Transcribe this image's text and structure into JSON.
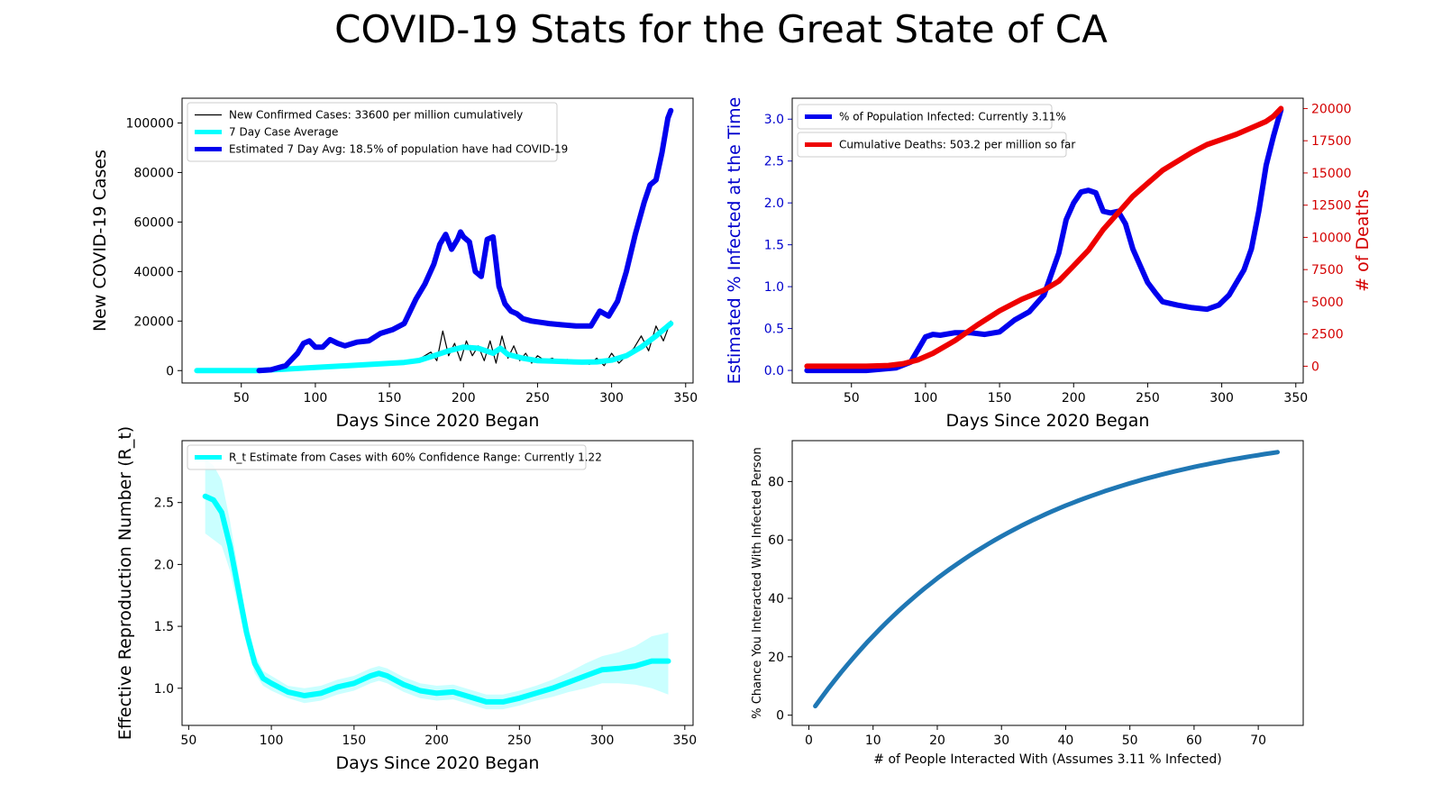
{
  "figure": {
    "title": "COVID-19 Stats for the Great State of CA"
  },
  "colors": {
    "black": "#000000",
    "cyan": "#00ffff",
    "blue": "#0000ee",
    "red": "#ee0000",
    "mpl_blue": "#1f77b4",
    "axis_blue": "#0000cd",
    "axis_red": "#d40000",
    "band": "#b3ffff"
  },
  "chart_data": [
    {
      "id": "cases",
      "type": "line",
      "xlabel": "Days Since 2020 Began",
      "ylabel": "New COVID-19 Cases",
      "xlim": [
        10,
        355
      ],
      "ylim": [
        -5000,
        110000
      ],
      "xticks": [
        50,
        100,
        150,
        200,
        250,
        300,
        350
      ],
      "yticks": [
        0,
        20000,
        40000,
        60000,
        80000,
        100000
      ],
      "legend_position": "upper-left",
      "grid": false,
      "series": [
        {
          "name": "New Confirmed Cases: 33600 per million cumulatively",
          "color": "#000000",
          "width": 1.2,
          "x": [
            20,
            40,
            60,
            80,
            100,
            120,
            140,
            160,
            170,
            178,
            182,
            186,
            190,
            194,
            198,
            202,
            206,
            210,
            214,
            218,
            222,
            226,
            230,
            234,
            238,
            242,
            246,
            250,
            255,
            260,
            265,
            270,
            275,
            280,
            285,
            290,
            295,
            300,
            305,
            310,
            315,
            320,
            325,
            330,
            335,
            340
          ],
          "y": [
            0,
            0,
            0,
            600,
            1500,
            2200,
            2800,
            3400,
            4600,
            7500,
            4000,
            16000,
            6000,
            11000,
            4000,
            12000,
            6000,
            10000,
            4000,
            12000,
            3000,
            14000,
            5000,
            10000,
            4000,
            7000,
            3000,
            6000,
            4000,
            5000,
            3000,
            4500,
            3000,
            4000,
            2500,
            5000,
            2000,
            7000,
            3000,
            6000,
            9000,
            14000,
            8000,
            18000,
            12000,
            20000
          ]
        },
        {
          "name": "7 Day Case Average",
          "color": "#00ffff",
          "width": 6,
          "x": [
            20,
            60,
            80,
            100,
            120,
            140,
            160,
            170,
            180,
            190,
            200,
            210,
            220,
            225,
            230,
            240,
            250,
            260,
            270,
            280,
            290,
            300,
            310,
            320,
            330,
            340
          ],
          "y": [
            0,
            0,
            600,
            1300,
            1900,
            2600,
            3300,
            4100,
            6000,
            8000,
            9500,
            9000,
            7000,
            9000,
            6500,
            5000,
            4000,
            3800,
            3600,
            3400,
            3500,
            4200,
            6000,
            9500,
            14000,
            19000
          ]
        },
        {
          "name": "Estimated 7 Day Avg: 18.5% of population have had COVID-19",
          "color": "#0000ee",
          "width": 6,
          "x": [
            62,
            70,
            80,
            88,
            92,
            96,
            100,
            105,
            110,
            115,
            120,
            128,
            136,
            144,
            152,
            160,
            168,
            174,
            180,
            184,
            188,
            192,
            196,
            198,
            200,
            204,
            208,
            212,
            216,
            220,
            224,
            228,
            232,
            236,
            240,
            246,
            252,
            258,
            266,
            276,
            286,
            292,
            298,
            304,
            310,
            316,
            322,
            326,
            330,
            334,
            338,
            340
          ],
          "y": [
            0,
            300,
            2000,
            7000,
            11000,
            12000,
            9500,
            9500,
            12500,
            11000,
            10000,
            11500,
            12000,
            15000,
            16500,
            19000,
            29000,
            35000,
            43000,
            51000,
            55000,
            49000,
            53000,
            56000,
            54000,
            52000,
            40000,
            38000,
            53000,
            54000,
            34000,
            27000,
            24000,
            23000,
            21000,
            20000,
            19500,
            19000,
            18500,
            18000,
            18000,
            24000,
            22000,
            28000,
            40000,
            55000,
            68000,
            75000,
            77000,
            88000,
            102000,
            105000
          ]
        }
      ]
    },
    {
      "id": "infected",
      "type": "line",
      "xlabel": "Days Since 2020 Began",
      "ylabel": "Estimated % Infected at the Time",
      "y2label": "# of Deaths",
      "xlim": [
        10,
        355
      ],
      "ylim": [
        -0.15,
        3.25
      ],
      "y2lim": [
        -1300,
        20800
      ],
      "xticks": [
        50,
        100,
        150,
        200,
        250,
        300,
        350
      ],
      "yticks": [
        0.0,
        0.5,
        1.0,
        1.5,
        2.0,
        2.5,
        3.0
      ],
      "ytick_labels": [
        "0.0",
        "0.5",
        "1.0",
        "1.5",
        "2.0",
        "2.5",
        "3.0"
      ],
      "y2ticks": [
        0,
        2500,
        5000,
        7500,
        10000,
        12500,
        15000,
        17500,
        20000
      ],
      "legend_position": "upper-left",
      "grid": false,
      "series": [
        {
          "name": "% of Population Infected: Currently 3.11%",
          "color": "#0000ee",
          "width": 6,
          "axis": "left",
          "x": [
            20,
            60,
            80,
            90,
            95,
            100,
            105,
            110,
            120,
            130,
            140,
            150,
            160,
            170,
            180,
            190,
            195,
            200,
            205,
            210,
            215,
            220,
            225,
            230,
            235,
            240,
            245,
            250,
            255,
            260,
            265,
            270,
            280,
            290,
            298,
            305,
            310,
            315,
            320,
            325,
            330,
            335,
            340
          ],
          "y": [
            0,
            0,
            0.03,
            0.1,
            0.25,
            0.4,
            0.43,
            0.42,
            0.45,
            0.45,
            0.43,
            0.46,
            0.6,
            0.7,
            0.9,
            1.4,
            1.8,
            2.0,
            2.13,
            2.15,
            2.12,
            1.9,
            1.88,
            1.9,
            1.75,
            1.45,
            1.25,
            1.05,
            0.93,
            0.82,
            0.8,
            0.78,
            0.75,
            0.73,
            0.78,
            0.9,
            1.05,
            1.2,
            1.45,
            1.9,
            2.45,
            2.8,
            3.11
          ]
        },
        {
          "name": "Cumulative Deaths: 503.2 per million so far",
          "color": "#ee0000",
          "width": 6,
          "axis": "right",
          "x": [
            20,
            60,
            75,
            85,
            95,
            105,
            120,
            135,
            150,
            165,
            180,
            190,
            200,
            210,
            220,
            230,
            240,
            250,
            260,
            270,
            280,
            290,
            300,
            310,
            320,
            330,
            335,
            340
          ],
          "y": [
            0,
            0,
            60,
            200,
            500,
            1000,
            2000,
            3200,
            4300,
            5200,
            5900,
            6600,
            7800,
            9000,
            10600,
            11900,
            13200,
            14200,
            15200,
            15900,
            16600,
            17200,
            17600,
            18000,
            18500,
            19000,
            19400,
            20000
          ]
        }
      ]
    },
    {
      "id": "rt",
      "type": "line",
      "xlabel": "Days Since 2020 Began",
      "ylabel": "Effective Reproduction Number (R_t)",
      "xlim": [
        46,
        355
      ],
      "ylim": [
        0.7,
        3.0
      ],
      "xticks": [
        50,
        100,
        150,
        200,
        250,
        300,
        350
      ],
      "yticks": [
        1.0,
        1.5,
        2.0,
        2.5
      ],
      "ytick_labels": [
        "1.0",
        "1.5",
        "2.0",
        "2.5"
      ],
      "legend_position": "upper-left",
      "grid": false,
      "series": [
        {
          "name": "R_t Estimate from Cases with 60% Confidence Range: Currently 1.22",
          "color": "#00ffff",
          "width": 6,
          "x": [
            60,
            65,
            70,
            75,
            80,
            85,
            90,
            95,
            100,
            110,
            120,
            130,
            140,
            150,
            160,
            165,
            170,
            180,
            190,
            200,
            210,
            220,
            230,
            240,
            250,
            260,
            270,
            280,
            290,
            300,
            310,
            320,
            330,
            340
          ],
          "y": [
            2.55,
            2.52,
            2.42,
            2.15,
            1.8,
            1.45,
            1.2,
            1.08,
            1.04,
            0.97,
            0.94,
            0.96,
            1.01,
            1.04,
            1.1,
            1.12,
            1.1,
            1.03,
            0.98,
            0.96,
            0.97,
            0.93,
            0.89,
            0.89,
            0.92,
            0.96,
            1.0,
            1.05,
            1.1,
            1.15,
            1.16,
            1.18,
            1.22,
            1.22
          ],
          "lower": [
            2.25,
            2.2,
            2.15,
            1.95,
            1.65,
            1.35,
            1.12,
            1.02,
            0.98,
            0.92,
            0.88,
            0.9,
            0.95,
            0.98,
            1.04,
            1.06,
            1.04,
            0.97,
            0.92,
            0.9,
            0.91,
            0.87,
            0.83,
            0.83,
            0.86,
            0.9,
            0.93,
            0.97,
            1.0,
            1.04,
            1.04,
            1.03,
            1.0,
            0.95
          ],
          "upper": [
            2.85,
            2.8,
            2.68,
            2.35,
            1.95,
            1.55,
            1.28,
            1.14,
            1.1,
            1.02,
            1.0,
            1.02,
            1.07,
            1.1,
            1.16,
            1.18,
            1.16,
            1.09,
            1.04,
            1.02,
            1.03,
            0.99,
            0.95,
            0.95,
            0.98,
            1.02,
            1.07,
            1.13,
            1.2,
            1.26,
            1.29,
            1.34,
            1.42,
            1.45
          ]
        }
      ]
    },
    {
      "id": "chance",
      "type": "line",
      "xlabel": "# of People Interacted With (Assumes 3.11 % Infected)",
      "ylabel": "% Chance You Interacted With Infected Person",
      "xlim": [
        -2.6,
        77
      ],
      "ylim": [
        -3.5,
        94
      ],
      "xticks": [
        0,
        10,
        20,
        30,
        40,
        50,
        60,
        70
      ],
      "yticks": [
        0,
        20,
        40,
        60,
        80
      ],
      "grid": false,
      "infected_rate": 0.0311,
      "series": [
        {
          "color": "#1f77b4",
          "width": 5,
          "x_start": 1,
          "x_end": 73
        }
      ]
    }
  ]
}
